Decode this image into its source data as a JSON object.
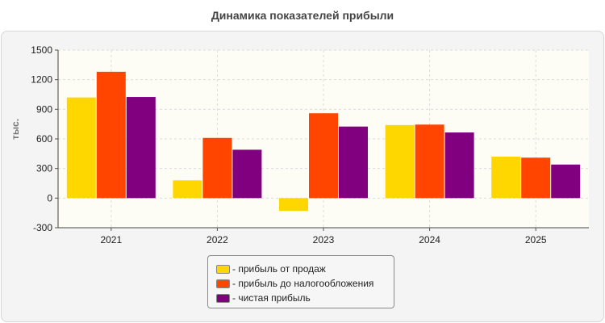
{
  "chart_data": {
    "type": "bar",
    "title": "Динамика показателей прибыли",
    "ylabel": "тыс.",
    "xlabel": "",
    "categories": [
      "2021",
      "2022",
      "2023",
      "2024",
      "2025"
    ],
    "ylim": [
      -300,
      1500
    ],
    "yticks": [
      -300,
      0,
      300,
      600,
      900,
      1200,
      1500
    ],
    "grid": true,
    "legend_position": "bottom",
    "series": [
      {
        "name": "прибыль от продаж",
        "color": "#FFD700",
        "values": [
          1020,
          180,
          -130,
          740,
          420
        ]
      },
      {
        "name": "прибыль до налогообложения",
        "color": "#FF4500",
        "values": [
          1280,
          610,
          860,
          745,
          410
        ]
      },
      {
        "name": "чистая прибыль",
        "color": "#800080",
        "values": [
          1025,
          490,
          725,
          665,
          340
        ]
      }
    ]
  }
}
